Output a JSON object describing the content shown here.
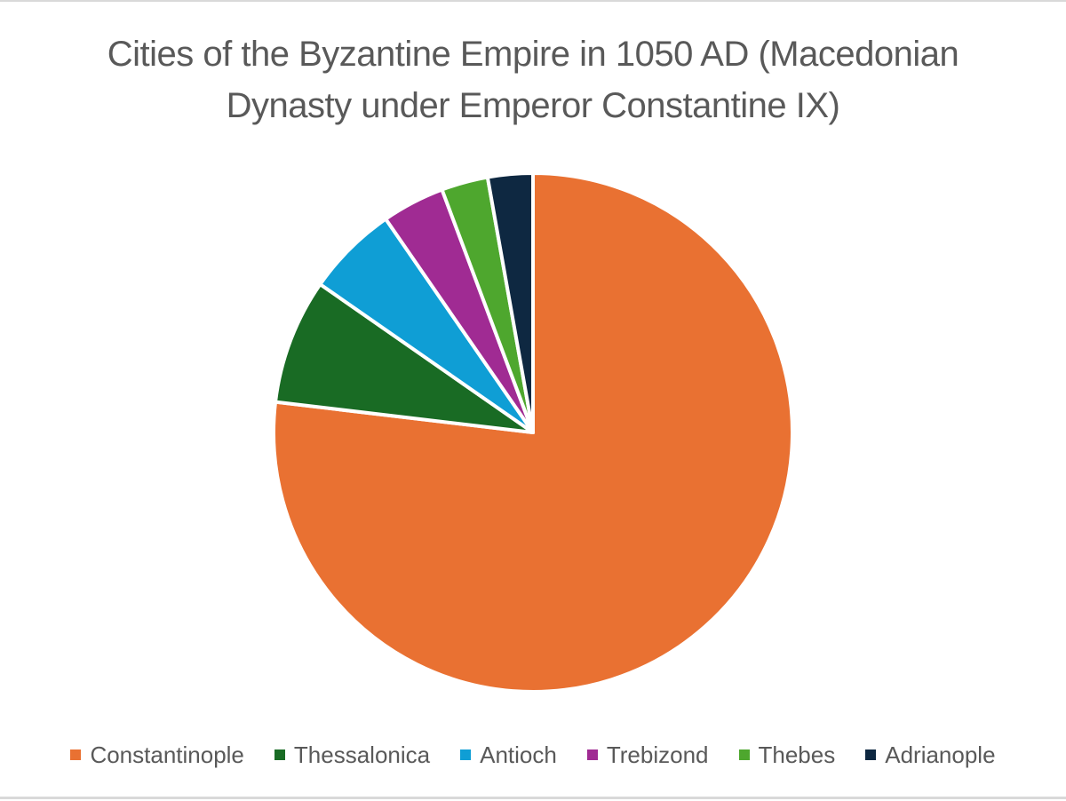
{
  "chart_data": {
    "type": "pie",
    "title": "Cities of the Byzantine Empire in 1050 AD (Macedonian Dynasty under Emperor Constantine IX)",
    "title_lines": [
      "Cities of the Byzantine Empire in 1050 AD (Macedonian",
      "Dynasty under Emperor Constantine IX)"
    ],
    "categories": [
      "Constantinople",
      "Thessalonica",
      "Antioch",
      "Trebizond",
      "Thebes",
      "Adrianople"
    ],
    "values": [
      76.8,
      7.8,
      5.7,
      3.9,
      2.9,
      2.8
    ],
    "value_unit": "approximate % share (estimated from slice angles; no data labels shown)",
    "colors": [
      "#E97132",
      "#196B24",
      "#0F9ED5",
      "#A02B93",
      "#4EA72E",
      "#0E2841"
    ],
    "start_angle_deg": 0,
    "direction": "clockwise from 12 o'clock",
    "legend_position": "bottom",
    "data_labels": false
  },
  "title": {
    "line1": "Cities of the Byzantine Empire in 1050 AD (Macedonian",
    "line2": "Dynasty under Emperor Constantine IX)"
  },
  "legend": {
    "items": [
      {
        "label": "Constantinople",
        "color": "#E97132"
      },
      {
        "label": "Thessalonica",
        "color": "#196B24"
      },
      {
        "label": "Antioch",
        "color": "#0F9ED5"
      },
      {
        "label": "Trebizond",
        "color": "#A02B93"
      },
      {
        "label": "Thebes",
        "color": "#4EA72E"
      },
      {
        "label": "Adrianople",
        "color": "#0E2841"
      }
    ]
  }
}
